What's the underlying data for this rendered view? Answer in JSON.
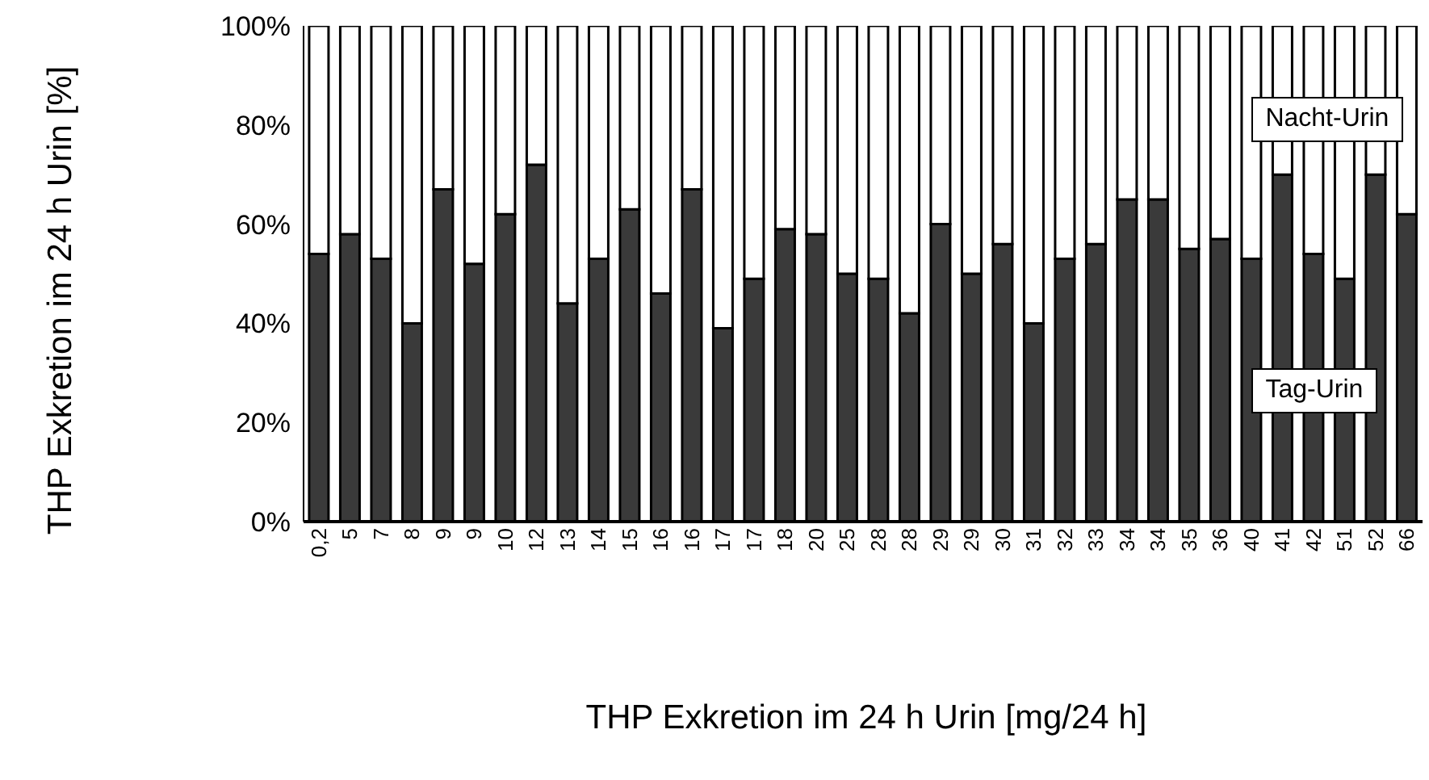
{
  "chart_data": {
    "type": "bar",
    "stacked": true,
    "xlabel": "THP Exkretion im 24 h Urin [mg/24 h]",
    "ylabel": "THP Exkretion im 24 h Urin [%]",
    "categories": [
      "0,2",
      "5",
      "7",
      "8",
      "9",
      "9",
      "10",
      "12",
      "13",
      "14",
      "15",
      "16",
      "16",
      "17",
      "17",
      "18",
      "20",
      "25",
      "28",
      "28",
      "29",
      "29",
      "30",
      "31",
      "32",
      "33",
      "34",
      "34",
      "35",
      "36",
      "40",
      "41",
      "42",
      "51",
      "52",
      "66"
    ],
    "series": [
      {
        "name": "Tag-Urin",
        "color": "#3a3a3a",
        "values": [
          54,
          58,
          53,
          40,
          67,
          52,
          62,
          72,
          44,
          53,
          63,
          46,
          67,
          39,
          49,
          59,
          58,
          50,
          49,
          42,
          60,
          50,
          56,
          40,
          53,
          56,
          65,
          65,
          55,
          57,
          53,
          70,
          54,
          49,
          70,
          62
        ]
      },
      {
        "name": "Nacht-Urin",
        "color": "#ffffff",
        "values": [
          46,
          42,
          47,
          60,
          33,
          48,
          38,
          28,
          56,
          47,
          37,
          54,
          33,
          61,
          51,
          41,
          42,
          50,
          51,
          58,
          40,
          50,
          44,
          60,
          47,
          44,
          35,
          35,
          45,
          43,
          47,
          30,
          46,
          51,
          30,
          38
        ]
      }
    ],
    "ylim": [
      0,
      100
    ],
    "yticks": [
      {
        "value": 0,
        "label": "0%"
      },
      {
        "value": 20,
        "label": "20%"
      },
      {
        "value": 40,
        "label": "40%"
      },
      {
        "value": 60,
        "label": "60%"
      },
      {
        "value": 80,
        "label": "80%"
      },
      {
        "value": 100,
        "label": "100%"
      }
    ],
    "grid": false,
    "legend": false
  }
}
